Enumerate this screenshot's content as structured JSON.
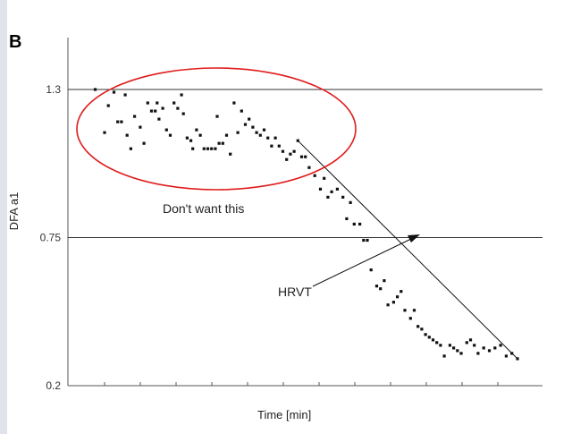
{
  "panel_label": "B",
  "chart_data": {
    "type": "scatter",
    "title": "",
    "xlabel": "Time [min]",
    "ylabel": "DFA a1",
    "ylim": [
      0.2,
      1.4
    ],
    "y_ticks": [
      "1.3",
      "0.75",
      "0.2"
    ],
    "x_tick_count": 12,
    "grid": false,
    "reference_lines": [
      {
        "y": 1.3,
        "label": "1.3"
      },
      {
        "y": 0.75,
        "label": "0.75"
      }
    ],
    "trend_line": {
      "from": [
        1.13,
        1.11
      ],
      "to": [
        2.3,
        0.3
      ]
    },
    "highlight_region": {
      "label": "Don't want this",
      "color": "#e01b1b"
    },
    "annotations": [
      {
        "text": "HRVT",
        "points_to": [
          1.8,
          0.75
        ]
      }
    ],
    "series": [
      {
        "x": [
          0.05,
          0.1,
          0.12,
          0.15,
          0.17,
          0.19,
          0.21,
          0.22,
          0.24,
          0.26,
          0.29,
          0.31,
          0.33,
          0.35,
          0.37,
          0.38,
          0.39,
          0.41,
          0.43,
          0.45,
          0.47,
          0.49,
          0.51,
          0.52,
          0.54,
          0.56,
          0.57,
          0.59,
          0.61,
          0.63,
          0.65,
          0.67,
          0.69,
          0.7,
          0.71,
          0.73,
          0.75,
          0.77,
          0.79,
          0.81,
          0.83,
          0.85,
          0.87,
          0.89,
          0.91,
          0.93,
          0.95,
          0.97,
          0.99,
          1.01,
          1.03,
          1.05,
          1.07,
          1.09,
          1.11,
          1.13,
          1.15,
          1.17,
          1.19,
          1.22,
          1.25,
          1.27,
          1.29,
          1.31,
          1.34,
          1.37,
          1.39,
          1.41,
          1.43,
          1.46,
          1.48,
          1.5,
          1.52,
          1.55,
          1.57,
          1.59,
          1.61,
          1.64,
          1.66,
          1.68,
          1.7,
          1.73,
          1.75,
          1.77,
          1.79,
          1.81,
          1.83,
          1.85,
          1.87,
          1.89,
          1.91,
          1.94,
          1.96,
          1.98,
          2.0,
          2.03,
          2.05,
          2.07,
          2.09,
          2.12,
          2.15,
          2.18,
          2.21,
          2.24,
          2.27,
          2.3
        ],
        "y": [
          1.3,
          1.14,
          1.24,
          1.29,
          1.18,
          1.18,
          1.28,
          1.13,
          1.08,
          1.2,
          1.16,
          1.1,
          1.25,
          1.22,
          1.22,
          1.25,
          1.19,
          1.23,
          1.15,
          1.13,
          1.25,
          1.23,
          1.28,
          1.21,
          1.12,
          1.11,
          1.08,
          1.15,
          1.13,
          1.08,
          1.08,
          1.08,
          1.08,
          1.2,
          1.1,
          1.1,
          1.13,
          1.06,
          1.25,
          1.14,
          1.22,
          1.17,
          1.19,
          1.16,
          1.14,
          1.13,
          1.15,
          1.12,
          1.09,
          1.12,
          1.09,
          1.07,
          1.04,
          1.06,
          1.07,
          1.11,
          1.05,
          1.05,
          1.01,
          0.98,
          0.93,
          0.97,
          0.9,
          0.92,
          0.93,
          0.9,
          0.82,
          0.88,
          0.8,
          0.8,
          0.74,
          0.74,
          0.63,
          0.57,
          0.56,
          0.59,
          0.5,
          0.51,
          0.53,
          0.55,
          0.48,
          0.45,
          0.48,
          0.42,
          0.41,
          0.39,
          0.38,
          0.37,
          0.36,
          0.35,
          0.31,
          0.35,
          0.34,
          0.33,
          0.32,
          0.36,
          0.37,
          0.35,
          0.32,
          0.34,
          0.33,
          0.34,
          0.35,
          0.31,
          0.32,
          0.3
        ],
        "x_scale_max": 2.4
      }
    ]
  }
}
